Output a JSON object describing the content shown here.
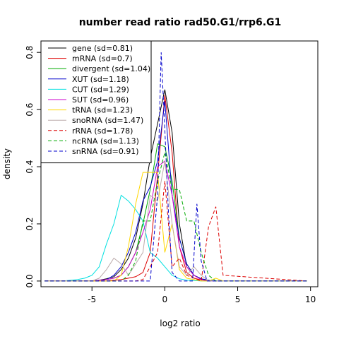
{
  "chart_data": {
    "type": "line",
    "title": "number read ratio rad50.G1/rrp6.G1",
    "xlabel": "log2 ratio",
    "ylabel": "density",
    "xlim": [
      -8.5,
      10.5
    ],
    "ylim": [
      -0.02,
      0.84
    ],
    "xticks": [
      -5,
      0,
      5,
      10
    ],
    "yticks": [
      0.0,
      0.2,
      0.4,
      0.6,
      0.8
    ],
    "xtick_labels": [
      "-5",
      "0",
      "5",
      "10"
    ],
    "ytick_labels": [
      "0.0",
      "0.2",
      "0.4",
      "0.6",
      "0.8"
    ],
    "legend_position": "top-left",
    "grid": false,
    "series": [
      {
        "name": "gene (sd=0.81)",
        "color": "#000000",
        "dash": "solid",
        "x": [
          -8.25,
          -5,
          -4.5,
          -4,
          -3.5,
          -3,
          -2.5,
          -2,
          -1.5,
          -1,
          -0.5,
          0,
          0.5,
          1,
          1.5,
          2,
          2.5,
          3,
          3.5,
          4,
          9.75
        ],
        "y": [
          0,
          0,
          0.003,
          0.008,
          0.015,
          0.04,
          0.08,
          0.15,
          0.27,
          0.43,
          0.55,
          0.67,
          0.52,
          0.2,
          0.05,
          0.02,
          0.008,
          0,
          0,
          0,
          0
        ]
      },
      {
        "name": "mRNA (sd=0.7)",
        "color": "#dd0000",
        "dash": "solid",
        "x": [
          -8.25,
          -4,
          -3.5,
          -3,
          -2.5,
          -2,
          -1.5,
          -1,
          -0.5,
          0,
          0.5,
          1,
          1.5,
          2,
          2.5,
          3,
          9.75
        ],
        "y": [
          0,
          0,
          0.003,
          0.005,
          0.01,
          0.015,
          0.03,
          0.1,
          0.37,
          0.65,
          0.45,
          0.12,
          0.03,
          0.01,
          0.004,
          0,
          0
        ]
      },
      {
        "name": "divergent (sd=1.04)",
        "color": "#00aa00",
        "dash": "solid",
        "x": [
          -8.25,
          -5,
          -4.5,
          -4,
          -3.5,
          -3,
          -2.5,
          -2,
          -1.5,
          -1,
          -0.5,
          0,
          0.5,
          1,
          1.5,
          2,
          2.5,
          3,
          3.5,
          9.75
        ],
        "y": [
          0,
          0,
          0.003,
          0.005,
          0.01,
          0.02,
          0.05,
          0.1,
          0.2,
          0.32,
          0.48,
          0.47,
          0.35,
          0.15,
          0.06,
          0.02,
          0.008,
          0.003,
          0,
          0
        ]
      },
      {
        "name": "XUT (sd=1.18)",
        "color": "#0000cc",
        "dash": "solid",
        "x": [
          -8.25,
          -5,
          -4.5,
          -4,
          -3.5,
          -3,
          -2.5,
          -2,
          -1.5,
          -1,
          -0.5,
          0,
          0.5,
          1,
          1.5,
          2,
          2.5,
          3,
          3.5,
          9.75
        ],
        "y": [
          0,
          0,
          0.003,
          0.005,
          0.02,
          0.05,
          0.1,
          0.17,
          0.28,
          0.33,
          0.42,
          0.63,
          0.3,
          0.15,
          0.06,
          0.02,
          0.008,
          0.003,
          0,
          0
        ]
      },
      {
        "name": "CUT (sd=1.29)",
        "color": "#00e0e0",
        "dash": "solid",
        "x": [
          -8.25,
          -7,
          -6,
          -5.5,
          -5,
          -4.5,
          -4,
          -3.5,
          -3,
          -2.5,
          -2,
          -1.5,
          -1,
          -0.5,
          0,
          0.5,
          1,
          1.5,
          2,
          2.5,
          3,
          9.75
        ],
        "y": [
          0,
          0,
          0.005,
          0.01,
          0.02,
          0.05,
          0.13,
          0.2,
          0.3,
          0.28,
          0.25,
          0.21,
          0.1,
          0.08,
          0.05,
          0.02,
          0.008,
          0.003,
          0.002,
          0,
          0,
          0
        ]
      },
      {
        "name": "SUT (sd=0.96)",
        "color": "#cc00cc",
        "dash": "solid",
        "x": [
          -8.25,
          -5,
          -4.5,
          -4,
          -3.5,
          -3,
          -2.5,
          -2,
          -1.5,
          -1,
          -0.5,
          0,
          0.5,
          1,
          1.5,
          2,
          2.5,
          3,
          9.75
        ],
        "y": [
          0,
          0,
          0.003,
          0.005,
          0.01,
          0.02,
          0.05,
          0.1,
          0.17,
          0.25,
          0.4,
          0.42,
          0.3,
          0.12,
          0.05,
          0.02,
          0.005,
          0,
          0
        ]
      },
      {
        "name": "tRNA (sd=1.23)",
        "color": "#ffd700",
        "dash": "solid",
        "x": [
          -8.25,
          -4,
          -3.5,
          -3,
          -2.5,
          -2,
          -1.5,
          -1,
          -0.5,
          0,
          0.5,
          1,
          1.5,
          2,
          2.5,
          3,
          3.5,
          4,
          9.75
        ],
        "y": [
          0,
          0,
          0,
          0.02,
          0.12,
          0.27,
          0.38,
          0.38,
          0.38,
          0.1,
          0.2,
          0.04,
          0.01,
          0.005,
          0,
          0,
          0.01,
          0,
          0
        ]
      },
      {
        "name": "snoRNA (sd=1.47)",
        "color": "#bbaaaa",
        "dash": "solid",
        "x": [
          -8.25,
          -5,
          -4.5,
          -4,
          -3.5,
          -3,
          -2.5,
          -2,
          -1.5,
          -1,
          -0.5,
          0,
          0.5,
          1,
          1.5,
          2,
          2.5,
          3,
          9.75
        ],
        "y": [
          0,
          0,
          0.01,
          0.04,
          0.08,
          0.06,
          0.02,
          0.06,
          0.1,
          0.3,
          0.28,
          0.42,
          0.2,
          0.05,
          0.02,
          0.05,
          0.02,
          0,
          0
        ]
      },
      {
        "name": "rRNA (sd=1.78)",
        "color": "#dd0000",
        "dash": "dashed",
        "x": [
          -8.25,
          -2,
          -1.5,
          -1,
          -0.5,
          0,
          0.5,
          1,
          1.5,
          2,
          2.5,
          3,
          3.5,
          4,
          9.75
        ],
        "y": [
          0,
          0,
          0.005,
          0.05,
          0.1,
          0.35,
          0.05,
          0.08,
          0.02,
          0.01,
          0,
          0.19,
          0.26,
          0.02,
          0
        ]
      },
      {
        "name": "ncRNA (sd=1.13)",
        "color": "#00aa00",
        "dash": "dashed",
        "x": [
          -8.25,
          -3,
          -2.5,
          -2,
          -1.5,
          -1,
          -0.5,
          0,
          0.5,
          1,
          1.5,
          2,
          2.5,
          3,
          3.5,
          9.75
        ],
        "y": [
          0,
          0,
          0.02,
          0.07,
          0.21,
          0.21,
          0.35,
          0.45,
          0.32,
          0.32,
          0.21,
          0.21,
          0.1,
          0.02,
          0,
          0
        ]
      },
      {
        "name": "snRNA (sd=0.91)",
        "color": "#0000cc",
        "dash": "dashed",
        "x": [
          -8.25,
          -1,
          -0.5,
          -0.25,
          0,
          0.25,
          0.5,
          1,
          1.5,
          1.9,
          2.2,
          2.5,
          2.9,
          3.2,
          9.75
        ],
        "y": [
          0,
          0,
          0.3,
          0.8,
          0.53,
          0.24,
          0.03,
          0,
          0,
          0,
          0.27,
          0.07,
          0,
          0,
          0
        ]
      }
    ]
  }
}
